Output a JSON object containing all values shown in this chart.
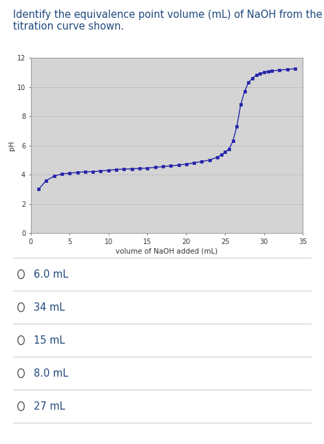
{
  "title_line1": "Identify the equivalence point volume (mL) of NaOH from the",
  "title_line2": "titration curve shown.",
  "title_color": "#1f497d",
  "title_fontsize": 10.5,
  "xlabel": "volume of NaOH added (mL)",
  "ylabel": "pH",
  "xlim": [
    0,
    35
  ],
  "ylim": [
    0,
    12
  ],
  "xticks": [
    0,
    5,
    10,
    15,
    20,
    25,
    30,
    35
  ],
  "yticks": [
    0,
    2,
    4,
    6,
    8,
    10,
    12
  ],
  "plot_bg_color": "#d4d4d4",
  "fig_bg_color": "#ffffff",
  "line_color": "#2222aa",
  "marker": "s",
  "markersize": 3.0,
  "linewidth": 1.0,
  "x_pts": [
    1,
    2,
    3,
    4,
    5,
    6,
    7,
    8,
    9,
    10,
    11,
    12,
    13,
    14,
    15,
    16,
    17,
    18,
    19,
    20,
    21,
    22,
    23,
    24,
    24.5,
    25,
    25.5,
    26,
    26.5,
    27,
    27.5,
    28,
    28.5,
    29,
    29.5,
    30,
    30.5,
    31,
    32,
    33,
    34
  ],
  "y_pts": [
    3.0,
    3.6,
    3.9,
    4.05,
    4.1,
    4.15,
    4.2,
    4.2,
    4.25,
    4.3,
    4.35,
    4.38,
    4.4,
    4.42,
    4.45,
    4.5,
    4.55,
    4.6,
    4.65,
    4.72,
    4.8,
    4.9,
    5.0,
    5.2,
    5.35,
    5.55,
    5.75,
    6.3,
    7.3,
    8.8,
    9.7,
    10.3,
    10.6,
    10.8,
    10.9,
    11.0,
    11.05,
    11.1,
    11.15,
    11.2,
    11.25
  ],
  "choices": [
    "6.0 mL",
    "34 mL",
    "15 mL",
    "8.0 mL",
    "27 mL"
  ],
  "choice_color": "#1f497d",
  "choice_fontsize": 10.5,
  "separator_color": "#cccccc",
  "circle_color": "#555555"
}
